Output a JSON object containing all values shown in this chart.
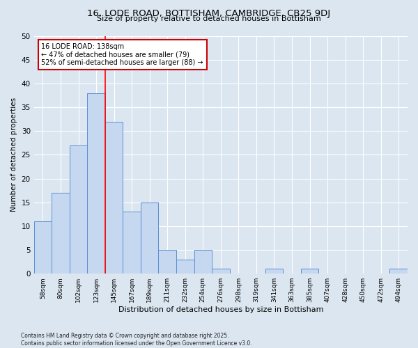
{
  "title_line1": "16, LODE ROAD, BOTTISHAM, CAMBRIDGE, CB25 9DJ",
  "title_line2": "Size of property relative to detached houses in Bottisham",
  "xlabel": "Distribution of detached houses by size in Bottisham",
  "ylabel": "Number of detached properties",
  "categories": [
    "58sqm",
    "80sqm",
    "102sqm",
    "123sqm",
    "145sqm",
    "167sqm",
    "189sqm",
    "211sqm",
    "232sqm",
    "254sqm",
    "276sqm",
    "298sqm",
    "319sqm",
    "341sqm",
    "363sqm",
    "385sqm",
    "407sqm",
    "428sqm",
    "450sqm",
    "472sqm",
    "494sqm"
  ],
  "values": [
    11,
    17,
    27,
    38,
    32,
    13,
    15,
    5,
    3,
    5,
    1,
    0,
    0,
    1,
    0,
    1,
    0,
    0,
    0,
    0,
    1
  ],
  "bar_color": "#c5d8f0",
  "bar_edge_color": "#5b8fd4",
  "bg_color": "#dce6f1",
  "grid_color": "#ffffff",
  "red_line_index": 4,
  "annotation_line1": "16 LODE ROAD: 138sqm",
  "annotation_line2": "← 47% of detached houses are smaller (79)",
  "annotation_line3": "52% of semi-detached houses are larger (88) →",
  "annotation_box_color": "#ffffff",
  "annotation_box_edge": "#cc0000",
  "footnote": "Contains HM Land Registry data © Crown copyright and database right 2025.\nContains public sector information licensed under the Open Government Licence v3.0.",
  "ylim": [
    0,
    50
  ],
  "yticks": [
    0,
    5,
    10,
    15,
    20,
    25,
    30,
    35,
    40,
    45,
    50
  ]
}
